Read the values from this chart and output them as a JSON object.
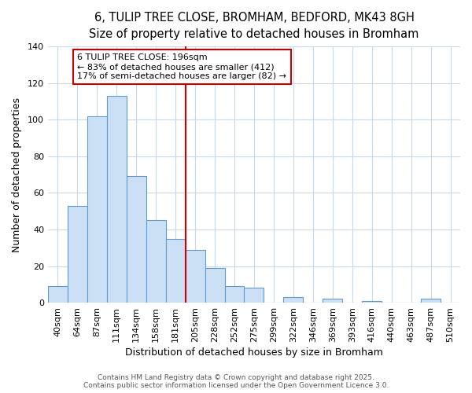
{
  "title": "6, TULIP TREE CLOSE, BROMHAM, BEDFORD, MK43 8GH",
  "subtitle": "Size of property relative to detached houses in Bromham",
  "xlabel": "Distribution of detached houses by size in Bromham",
  "ylabel": "Number of detached properties",
  "bar_labels": [
    "40sqm",
    "64sqm",
    "87sqm",
    "111sqm",
    "134sqm",
    "158sqm",
    "181sqm",
    "205sqm",
    "228sqm",
    "252sqm",
    "275sqm",
    "299sqm",
    "322sqm",
    "346sqm",
    "369sqm",
    "393sqm",
    "416sqm",
    "440sqm",
    "463sqm",
    "487sqm",
    "510sqm"
  ],
  "bar_values": [
    9,
    53,
    102,
    113,
    69,
    45,
    35,
    29,
    19,
    9,
    8,
    0,
    3,
    0,
    2,
    0,
    1,
    0,
    0,
    2,
    0
  ],
  "bar_color": "#cce0f5",
  "bar_edge_color": "#5b9bd5",
  "vertical_line_index": 7,
  "vertical_line_color": "#cc0000",
  "annotation_line1": "6 TULIP TREE CLOSE: 196sqm",
  "annotation_line2": "← 83% of detached houses are smaller (412)",
  "annotation_line3": "17% of semi-detached houses are larger (82) →",
  "annotation_box_facecolor": "#ffffff",
  "annotation_box_edgecolor": "#cc0000",
  "ylim": [
    0,
    140
  ],
  "yticks": [
    0,
    20,
    40,
    60,
    80,
    100,
    120,
    140
  ],
  "title_fontsize": 10.5,
  "subtitle_fontsize": 9.5,
  "axis_label_fontsize": 9,
  "tick_fontsize": 8,
  "annotation_fontsize": 8,
  "footer_fontsize": 6.5,
  "background_color": "#ffffff",
  "plot_background_color": "#ffffff",
  "grid_color": "#c8d8eb",
  "footer_line1": "Contains HM Land Registry data © Crown copyright and database right 2025.",
  "footer_line2": "Contains public sector information licensed under the Open Government Licence 3.0."
}
